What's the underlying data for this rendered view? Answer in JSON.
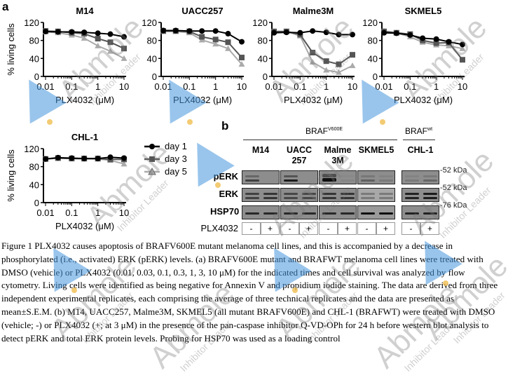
{
  "figure": {
    "panel_a_label": "a",
    "panel_b_label": "b"
  },
  "chart_data": [
    {
      "type": "line",
      "title": "M14",
      "xlabel": "PLX4032 (μM)",
      "ylabel": "% living cells",
      "xscale": "log",
      "xlim": [
        0.01,
        10
      ],
      "ylim": [
        0,
        120
      ],
      "xticks": [
        "0.01",
        "0.1",
        "1",
        "10"
      ],
      "yticks": [
        "0",
        "40",
        "80",
        "120"
      ],
      "x": [
        0.01,
        0.03,
        0.1,
        0.3,
        1,
        3,
        10
      ],
      "series": [
        {
          "name": "day 1",
          "values": [
            100,
            99,
            99,
            98,
            96,
            94,
            88
          ]
        },
        {
          "name": "day 3",
          "values": [
            101,
            100,
            97,
            95,
            84,
            76,
            62
          ]
        },
        {
          "name": "day 5",
          "values": [
            99,
            97,
            92,
            85,
            68,
            56,
            40
          ]
        }
      ]
    },
    {
      "type": "line",
      "title": "UACC257",
      "xlabel": "PLX4032 (μM)",
      "ylabel": "",
      "xscale": "log",
      "xlim": [
        0.01,
        10
      ],
      "ylim": [
        0,
        120
      ],
      "xticks": [
        "0.01",
        "0.1",
        "1",
        "10"
      ],
      "yticks": [
        "0",
        "40",
        "80",
        "120"
      ],
      "x": [
        0.01,
        0.03,
        0.1,
        0.3,
        1,
        3,
        10
      ],
      "series": [
        {
          "name": "day 1",
          "values": [
            102,
            102,
            101,
            101,
            101,
            95,
            77
          ]
        },
        {
          "name": "day 3",
          "values": [
            101,
            101,
            100,
            88,
            82,
            76,
            42
          ]
        },
        {
          "name": "day 5",
          "values": [
            100,
            100,
            97,
            81,
            72,
            62,
            27
          ]
        }
      ]
    },
    {
      "type": "line",
      "title": "Malme3M",
      "xlabel": "PLX4032 (μM)",
      "ylabel": "",
      "xscale": "log",
      "xlim": [
        0.01,
        10
      ],
      "ylim": [
        0,
        120
      ],
      "xticks": [
        "0.01",
        "0.1",
        "1",
        "10"
      ],
      "yticks": [
        "0",
        "40",
        "80",
        "120"
      ],
      "x": [
        0.01,
        0.03,
        0.1,
        0.3,
        1,
        3,
        10
      ],
      "series": [
        {
          "name": "day 1",
          "values": [
            97,
            98,
            97,
            101,
            98,
            93,
            93
          ]
        },
        {
          "name": "day 3",
          "values": [
            100,
            100,
            93,
            53,
            34,
            27,
            48
          ]
        },
        {
          "name": "day 5",
          "values": [
            100,
            100,
            90,
            32,
            14,
            9,
            24
          ]
        }
      ]
    },
    {
      "type": "line",
      "title": "SKMEL5",
      "xlabel": "PLX4032 (μM)",
      "ylabel": "",
      "xscale": "log",
      "xlim": [
        0.01,
        10
      ],
      "ylim": [
        0,
        120
      ],
      "xticks": [
        "0.01",
        "0.1",
        "1",
        "10"
      ],
      "yticks": [
        "0",
        "40",
        "80",
        "120"
      ],
      "x": [
        0.01,
        0.03,
        0.1,
        0.3,
        1,
        3,
        10
      ],
      "series": [
        {
          "name": "day 1",
          "values": [
            97,
            96,
            92,
            85,
            83,
            77,
            71
          ]
        },
        {
          "name": "day 3",
          "values": [
            100,
            97,
            94,
            80,
            74,
            75,
            37
          ]
        },
        {
          "name": "day 5",
          "values": [
            101,
            97,
            88,
            76,
            70,
            68,
            62
          ]
        }
      ]
    },
    {
      "type": "line",
      "title": "CHL-1",
      "xlabel": "PLX4032 (μM)",
      "ylabel": "% living cells",
      "xscale": "log",
      "xlim": [
        0.01,
        10
      ],
      "ylim": [
        0,
        120
      ],
      "xticks": [
        "0.01",
        "0.1",
        "1",
        "10"
      ],
      "yticks": [
        "0",
        "40",
        "80",
        "120"
      ],
      "x": [
        0.01,
        0.03,
        0.1,
        0.3,
        1,
        3,
        10
      ],
      "series": [
        {
          "name": "day 1",
          "values": [
            97,
            100,
            99,
            98,
            98,
            101,
            99
          ]
        },
        {
          "name": "day 3",
          "values": [
            97,
            99,
            98,
            98,
            98,
            96,
            96
          ]
        },
        {
          "name": "day 5",
          "values": [
            97,
            99,
            98,
            97,
            97,
            94,
            86
          ]
        }
      ],
      "legend": "right"
    }
  ],
  "legend": [
    {
      "label": "day 1",
      "marker": "circle",
      "color": "#000000"
    },
    {
      "label": "day 3",
      "marker": "square",
      "color": "#555555"
    },
    {
      "label": "day 5",
      "marker": "triangle",
      "color": "#aaaaaa"
    }
  ],
  "blot": {
    "group_mutant": "BRAF",
    "group_mutant_sup": "V600E",
    "group_wt": "BRAF",
    "group_wt_sup": "wt",
    "cell_lines": [
      {
        "line1": "M14",
        "line2": ""
      },
      {
        "line1": "UACC",
        "line2": "257"
      },
      {
        "line1": "Malme",
        "line2": "3M"
      },
      {
        "line1": "SKMEL5",
        "line2": ""
      },
      {
        "line1": "CHL-1",
        "line2": ""
      }
    ],
    "rows": [
      {
        "label": "pERK",
        "kda": "52 kDa",
        "intensity": [
          [
            0.6,
            0
          ],
          [
            0.9,
            0
          ],
          [
            1,
            0.05
          ],
          [
            0.35,
            0.15
          ],
          [
            0.15,
            0.3
          ]
        ]
      },
      {
        "label": "ERK",
        "kda": "52 kDa",
        "intensity": [
          [
            0.6,
            0.7
          ],
          [
            0.55,
            0.55
          ],
          [
            0.7,
            0.7
          ],
          [
            0.3,
            0.3
          ],
          [
            0.85,
            0.9
          ]
        ]
      },
      {
        "label": "HSP70",
        "kda": "76 kDa",
        "intensity": [
          [
            0.8,
            0.8
          ],
          [
            0.8,
            0.8
          ],
          [
            0.8,
            0.8
          ],
          [
            1,
            1
          ],
          [
            0.85,
            0.85
          ]
        ]
      }
    ],
    "treatment_label": "PLX4032",
    "treatment": [
      "-",
      "+",
      "-",
      "+",
      "-",
      "+",
      "-",
      "+",
      "-",
      "+"
    ]
  },
  "caption": "Figure 1 PLX4032 causes apoptosis of BRAFV600E mutant melanoma cell lines, and this is accompanied by a decrease in phosphorylated (i.e., activated) ERK (pERK) levels. (a) BRAFV600E mutant and BRAFWT melanoma cell lines were treated with DMSO (vehicle) or PLX4032 (0.01, 0.03, 0.1, 0.3, 1, 3, 10 μM) for the indicated times and cell survival was analyzed by flow cytometry. Living cells were identified as being negative for Annexin V and propidium iodide staining. The data are derived from three independent experimental replicates, each comprising the average of three technical replicates and the data are presented as mean±S.E.M. (b) M14, UACC257, Malme3M, SKMEL5 (all mutant BRAFV600E) and CHL-1 (BRAFWT) were treated with DMSO (vehicle; -) or PLX4032 (+; at 3 μM) in the presence of the pan-caspase inhibitor Q-VD-OPh for 24 h before western blot analysis to detect pERK and total ERK protein levels. Probing for HSP70 was used as a loading control",
  "watermark": {
    "brand": "Abmole",
    "tagline": "Inhibitor Leader"
  }
}
